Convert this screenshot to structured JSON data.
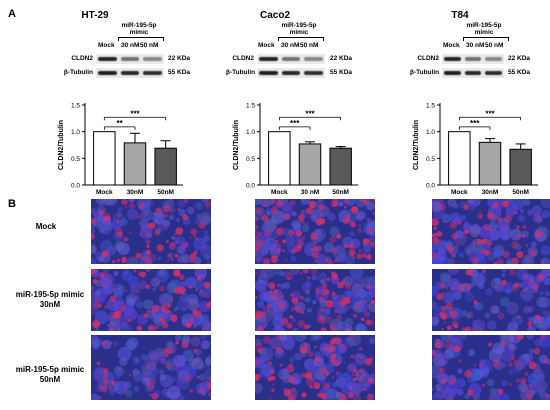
{
  "panel_labels": [
    "A",
    "B"
  ],
  "cell_lines": [
    {
      "name": "HT-29",
      "blot": {
        "mimic_label": [
          "miR-195-5p",
          "mimic"
        ],
        "lanes": [
          "Mock",
          "30 nM",
          "50 nM"
        ],
        "proteins": [
          "CLDN2",
          "β-Tubulin"
        ],
        "sizes": [
          "22 KDa",
          "55 KDa"
        ]
      }
    },
    {
      "name": "Caco2",
      "blot": {
        "mimic_label": [
          "miR-195-5p",
          "mimic"
        ],
        "lanes": [
          "Mock",
          "30 nM",
          "50 nM"
        ],
        "proteins": [
          "CLDN2",
          "β-Tubulin"
        ],
        "sizes": [
          "22 KDa",
          "55 KDa"
        ]
      }
    },
    {
      "name": "T84",
      "blot": {
        "mimic_label": [
          "miR-195-5p",
          "mimic"
        ],
        "lanes": [
          "Mock",
          "30 nM",
          "50 nM"
        ],
        "proteins": [
          "CLDN2",
          "β-Tubulin"
        ],
        "sizes": [
          "22 KDa",
          "55 KDa"
        ]
      }
    }
  ],
  "chart_data": [
    {
      "type": "bar",
      "categories": [
        "Mock",
        "30nM",
        "50nM"
      ],
      "values": [
        1.0,
        0.79,
        0.69
      ],
      "errors": [
        0.0,
        0.18,
        0.14
      ],
      "colors": [
        "#ffffff",
        "#a6a6a6",
        "#595959"
      ],
      "ylabel": "CLDN2/Tubulin",
      "ylim": [
        0,
        1.5
      ],
      "yticks": [
        "0.0",
        "0.5",
        "1.0",
        "1.5"
      ],
      "significance": [
        {
          "from": 0,
          "to": 1,
          "label": "**",
          "level": 1.09
        },
        {
          "from": 0,
          "to": 2,
          "label": "***",
          "level": 1.27
        }
      ]
    },
    {
      "type": "bar",
      "categories": [
        "Mock",
        "30 nM",
        "50nM"
      ],
      "values": [
        1.0,
        0.77,
        0.69
      ],
      "errors": [
        0.0,
        0.04,
        0.03
      ],
      "colors": [
        "#ffffff",
        "#a6a6a6",
        "#595959"
      ],
      "ylabel": "CLDN2/Tubulin",
      "ylim": [
        0,
        1.5
      ],
      "yticks": [
        "0.0",
        "0.5",
        "1.0",
        "1.5"
      ],
      "significance": [
        {
          "from": 0,
          "to": 1,
          "label": "***",
          "level": 1.09
        },
        {
          "from": 0,
          "to": 2,
          "label": "***",
          "level": 1.27
        }
      ]
    },
    {
      "type": "bar",
      "categories": [
        "Mock",
        "30nM",
        "50nM"
      ],
      "values": [
        1.0,
        0.8,
        0.67
      ],
      "errors": [
        0.0,
        0.07,
        0.1
      ],
      "colors": [
        "#ffffff",
        "#a6a6a6",
        "#595959"
      ],
      "ylabel": "CLDN2/Tubulin",
      "ylim": [
        0,
        1.5
      ],
      "yticks": [
        "0.0",
        "0.5",
        "1.0",
        "1.5"
      ],
      "significance": [
        {
          "from": 0,
          "to": 1,
          "label": "***",
          "level": 1.09
        },
        {
          "from": 0,
          "to": 2,
          "label": "***",
          "level": 1.27
        }
      ]
    }
  ],
  "micro_rows": [
    {
      "label": [
        "Mock"
      ]
    },
    {
      "label": [
        "miR-195-5p mimic",
        "30nM"
      ]
    },
    {
      "label": [
        "miR-195-5p mimic",
        "50nM"
      ]
    }
  ],
  "micro_colors": {
    "base": "#2a2f8c",
    "stain": "#d0306a"
  }
}
